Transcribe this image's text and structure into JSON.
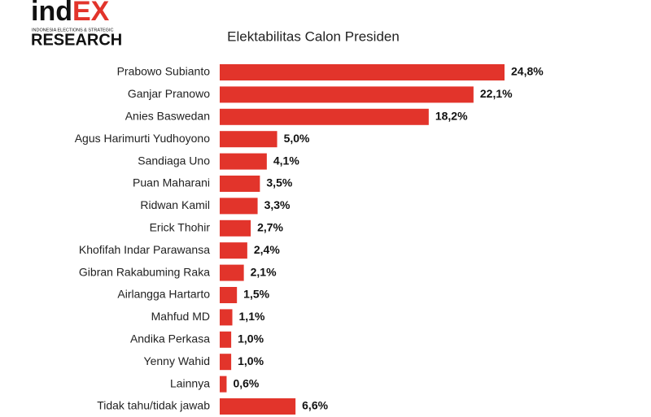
{
  "logo": {
    "brand_a": "ind",
    "brand_b": "EX",
    "tagline": "INDONESIA ELECTIONS & STRATEGIC",
    "name": "RESEARCH"
  },
  "chart_data": {
    "type": "bar",
    "orientation": "horizontal",
    "title": "Elektabilitas Calon Presiden",
    "categories": [
      "Prabowo Subianto",
      "Ganjar Pranowo",
      "Anies Baswedan",
      "Agus Harimurti Yudhoyono",
      "Sandiaga Uno",
      "Puan Maharani",
      "Ridwan Kamil",
      "Erick Thohir",
      "Khofifah Indar Parawansa",
      "Gibran Rakabuming Raka",
      "Airlangga Hartarto",
      "Mahfud MD",
      "Andika Perkasa",
      "Yenny Wahid",
      "Lainnya",
      "Tidak tahu/tidak jawab"
    ],
    "values": [
      24.8,
      22.1,
      18.2,
      5.0,
      4.1,
      3.5,
      3.3,
      2.7,
      2.4,
      2.1,
      1.5,
      1.1,
      1.0,
      1.0,
      0.6,
      6.6
    ],
    "value_labels": [
      "24,8%",
      "22,1%",
      "18,2%",
      "5,0%",
      "4,1%",
      "3,5%",
      "3,3%",
      "2,7%",
      "2,4%",
      "2,1%",
      "1,5%",
      "1,1%",
      "1,0%",
      "1,0%",
      "0,6%",
      "6,6%"
    ],
    "color": "#e2342b"
  }
}
